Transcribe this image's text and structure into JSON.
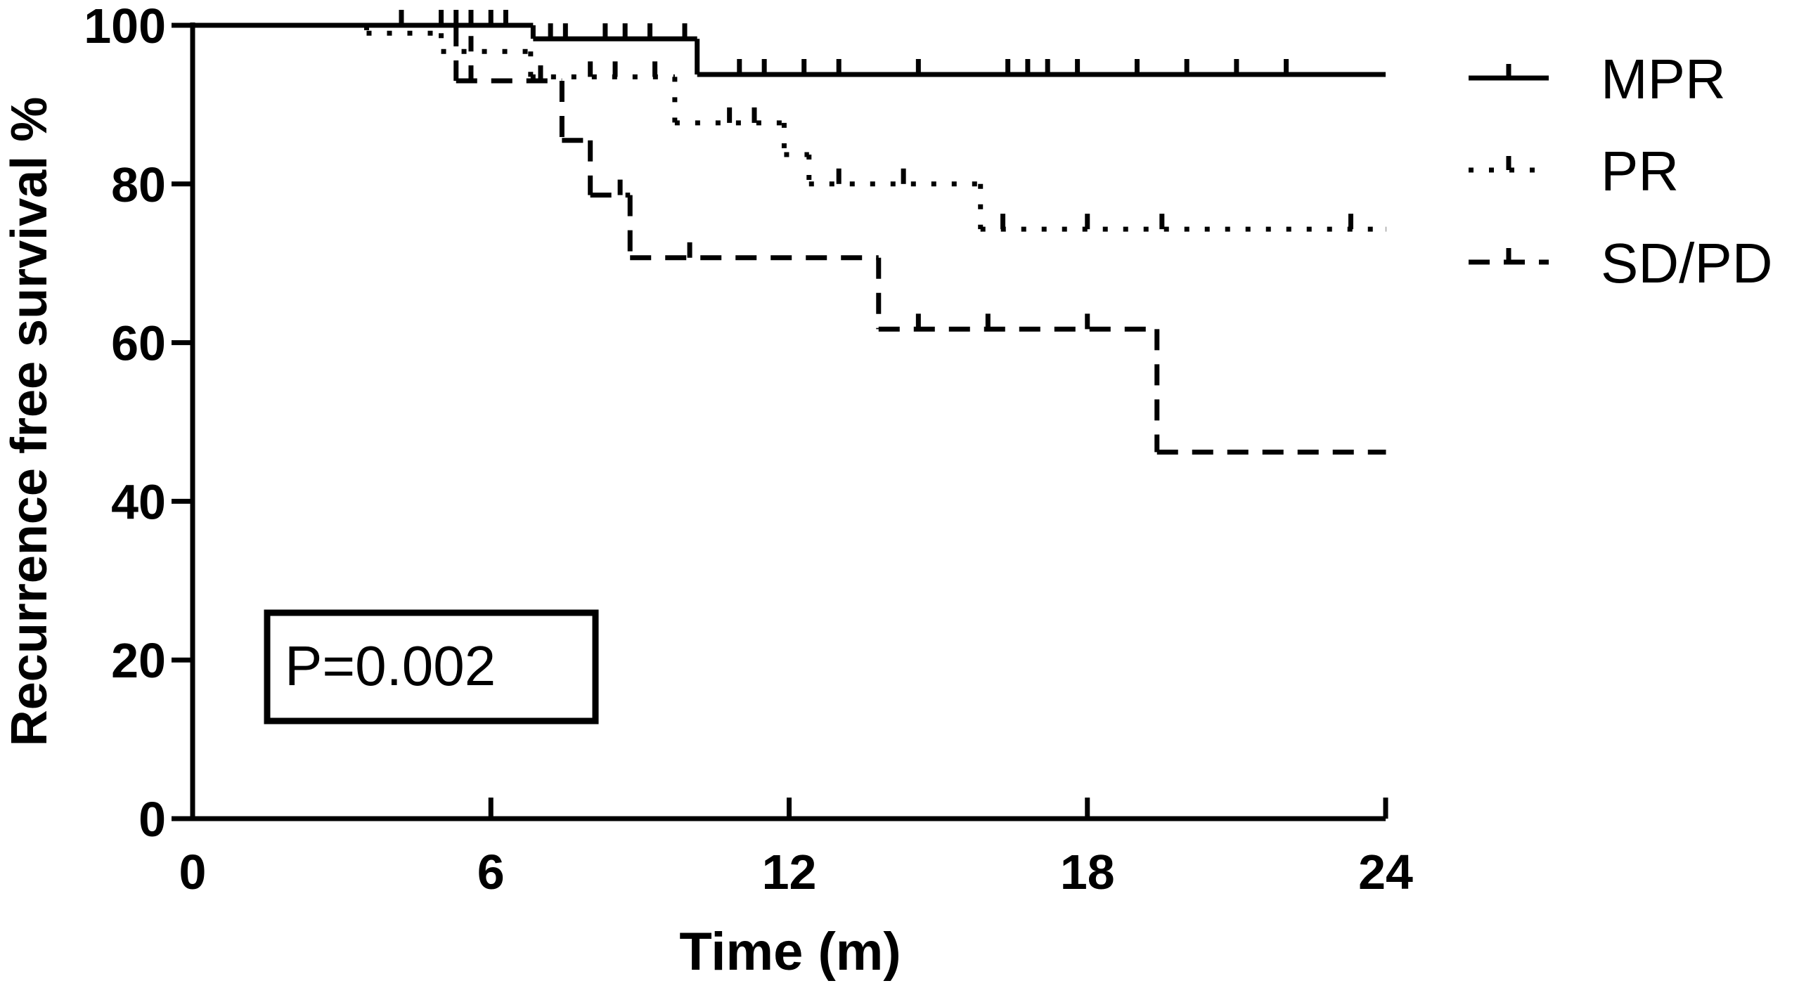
{
  "chart_data": {
    "type": "step",
    "xlabel": "Time (m)",
    "ylabel": "Recurrence free survival %",
    "xlim": [
      0,
      24
    ],
    "ylim": [
      0,
      100
    ],
    "xticks": [
      0,
      6,
      12,
      18,
      24
    ],
    "yticks": [
      0,
      20,
      40,
      60,
      80,
      100
    ],
    "annotation": "P=0.002",
    "legend": "right",
    "series": [
      {
        "name": "MPR",
        "color": "#000000",
        "dash": "solid",
        "x": [
          0,
          6.85,
          10.15,
          24
        ],
        "values": [
          100,
          98.3,
          93.8,
          93.8
        ],
        "censored": [
          4.2,
          5.0,
          5.3,
          5.6,
          6.0,
          6.3,
          7.2,
          7.5,
          8.3,
          8.7,
          9.2,
          9.9,
          11.0,
          11.5,
          12.3,
          13.0,
          14.6,
          16.4,
          16.8,
          17.2,
          17.8,
          19.0,
          20.0,
          21.0,
          22.0
        ]
      },
      {
        "name": "PR",
        "color": "#000000",
        "dash": "dotted",
        "x": [
          0,
          3.5,
          5.0,
          6.8,
          9.7,
          11.9,
          12.4,
          15.85,
          24
        ],
        "values": [
          100,
          99,
          96.7,
          93.5,
          87.7,
          83.7,
          80,
          74.3,
          74.3
        ],
        "censored": [
          5.6,
          8.0,
          8.5,
          9.3,
          10.8,
          11.3,
          13.0,
          14.3,
          16.3,
          18.0,
          19.5,
          23.3
        ]
      },
      {
        "name": "SD/PD",
        "color": "#000000",
        "dash": "dashed",
        "x": [
          0,
          5.3,
          7.43,
          8.0,
          8.8,
          13.8,
          19.4,
          24
        ],
        "values": [
          100,
          93,
          85.5,
          78.6,
          70.7,
          61.7,
          46.2,
          46.2
        ],
        "censored": [
          5.6,
          7.0,
          8.6,
          10.0,
          14.6,
          16.0,
          18.0
        ]
      }
    ]
  }
}
